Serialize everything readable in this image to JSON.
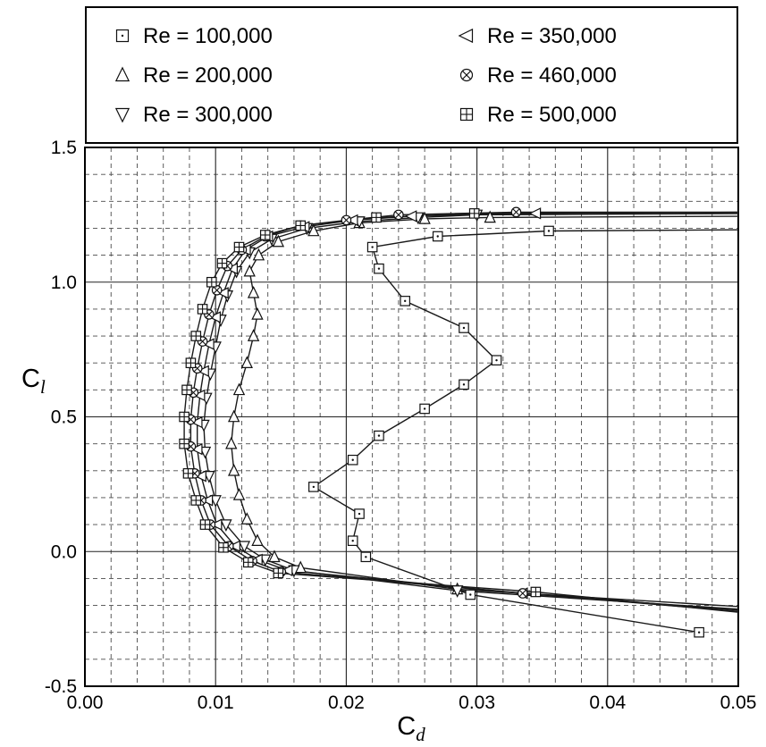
{
  "chart_data": {
    "type": "scatter",
    "title": "",
    "xlabel_main": "C",
    "xlabel_sub": "d",
    "ylabel_main": "C",
    "ylabel_sub": "l",
    "xlim": [
      0,
      0.05
    ],
    "ylim": [
      -0.5,
      1.5
    ],
    "x_major_ticks": [
      0,
      0.01,
      0.02,
      0.03,
      0.04,
      0.05
    ],
    "x_tick_labels": [
      "0.00",
      "0.01",
      "0.02",
      "0.03",
      "0.04",
      "0.05"
    ],
    "y_major_ticks": [
      -0.5,
      0,
      0.5,
      1,
      1.5
    ],
    "y_tick_labels": [
      "-0.5",
      "0.0",
      "0.5",
      "1.0",
      "1.5"
    ],
    "x_minor_step": 0.002,
    "y_minor_step": 0.1,
    "grid": {
      "major": "solid",
      "minor": "dashed"
    },
    "line_color": "#1a1a1a",
    "background": "#ffffff",
    "legend": {
      "position": "top",
      "columns": 2,
      "border": true
    },
    "series": [
      {
        "name": "Re = 100,000",
        "marker": "square-dot",
        "points": [
          [
            0.047,
            -0.3
          ],
          [
            0.0295,
            -0.16
          ],
          [
            0.0215,
            -0.02
          ],
          [
            0.0205,
            0.04
          ],
          [
            0.021,
            0.14
          ],
          [
            0.0175,
            0.24
          ],
          [
            0.0205,
            0.34
          ],
          [
            0.0225,
            0.43
          ],
          [
            0.026,
            0.53
          ],
          [
            0.029,
            0.62
          ],
          [
            0.0315,
            0.71
          ],
          [
            0.029,
            0.83
          ],
          [
            0.0245,
            0.93
          ],
          [
            0.0225,
            1.05
          ],
          [
            0.022,
            1.13
          ],
          [
            0.027,
            1.17
          ],
          [
            0.0355,
            1.19
          ]
        ],
        "post": [
          [
            0.052,
            1.195
          ]
        ]
      },
      {
        "name": "Re = 200,000",
        "marker": "triangle-up",
        "pre": [
          [
            0.052,
            -0.21
          ]
        ],
        "points": [
          [
            0.0285,
            -0.14
          ],
          [
            0.0165,
            -0.06
          ],
          [
            0.0145,
            -0.02
          ],
          [
            0.0132,
            0.04
          ],
          [
            0.0124,
            0.12
          ],
          [
            0.0118,
            0.21
          ],
          [
            0.0114,
            0.3
          ],
          [
            0.0112,
            0.4
          ],
          [
            0.0114,
            0.5
          ],
          [
            0.0118,
            0.6
          ],
          [
            0.0124,
            0.7
          ],
          [
            0.0129,
            0.8
          ],
          [
            0.0132,
            0.88
          ],
          [
            0.0129,
            0.96
          ],
          [
            0.0126,
            1.04
          ],
          [
            0.0133,
            1.1
          ],
          [
            0.0148,
            1.15
          ],
          [
            0.0175,
            1.19
          ],
          [
            0.021,
            1.22
          ],
          [
            0.026,
            1.235
          ],
          [
            0.031,
            1.24
          ]
        ],
        "post": [
          [
            0.052,
            1.245
          ]
        ]
      },
      {
        "name": "Re = 300,000",
        "marker": "triangle-down",
        "pre": [
          [
            0.052,
            -0.22
          ]
        ],
        "points": [
          [
            0.0285,
            -0.145
          ],
          [
            0.016,
            -0.07
          ],
          [
            0.0138,
            -0.03
          ],
          [
            0.0122,
            0.02
          ],
          [
            0.0108,
            0.1
          ],
          [
            0.01,
            0.19
          ],
          [
            0.0095,
            0.28
          ],
          [
            0.0092,
            0.37
          ],
          [
            0.0091,
            0.47
          ],
          [
            0.0093,
            0.57
          ],
          [
            0.0096,
            0.66
          ],
          [
            0.01,
            0.76
          ],
          [
            0.0104,
            0.86
          ],
          [
            0.0109,
            0.95
          ],
          [
            0.0116,
            1.04
          ],
          [
            0.0126,
            1.11
          ],
          [
            0.0143,
            1.16
          ],
          [
            0.017,
            1.2
          ],
          [
            0.021,
            1.225
          ],
          [
            0.0255,
            1.24
          ],
          [
            0.03,
            1.25
          ]
        ],
        "post": [
          [
            0.052,
            1.255
          ]
        ]
      },
      {
        "name": "Re = 350,000",
        "marker": "triangle-left",
        "pre": [
          [
            0.052,
            -0.225
          ]
        ],
        "points": [
          [
            0.0335,
            -0.155
          ],
          [
            0.0155,
            -0.07
          ],
          [
            0.0132,
            -0.03
          ],
          [
            0.0115,
            0.02
          ],
          [
            0.0101,
            0.1
          ],
          [
            0.0094,
            0.19
          ],
          [
            0.0089,
            0.28
          ],
          [
            0.0086,
            0.38
          ],
          [
            0.0086,
            0.48
          ],
          [
            0.0088,
            0.58
          ],
          [
            0.0091,
            0.67
          ],
          [
            0.0095,
            0.77
          ],
          [
            0.01,
            0.87
          ],
          [
            0.0106,
            0.96
          ],
          [
            0.0113,
            1.05
          ],
          [
            0.0123,
            1.12
          ],
          [
            0.014,
            1.17
          ],
          [
            0.0168,
            1.205
          ],
          [
            0.0205,
            1.23
          ],
          [
            0.025,
            1.245
          ],
          [
            0.0345,
            1.255
          ]
        ],
        "post": [
          [
            0.052,
            1.26
          ]
        ]
      },
      {
        "name": "Re = 460,000",
        "marker": "circle-x",
        "pre": [
          [
            0.052,
            -0.23
          ]
        ],
        "points": [
          [
            0.0335,
            -0.155
          ],
          [
            0.015,
            -0.075
          ],
          [
            0.0128,
            -0.035
          ],
          [
            0.011,
            0.02
          ],
          [
            0.0096,
            0.1
          ],
          [
            0.0089,
            0.19
          ],
          [
            0.0084,
            0.29
          ],
          [
            0.0081,
            0.39
          ],
          [
            0.0081,
            0.49
          ],
          [
            0.0083,
            0.59
          ],
          [
            0.0086,
            0.68
          ],
          [
            0.009,
            0.78
          ],
          [
            0.0095,
            0.88
          ],
          [
            0.0101,
            0.97
          ],
          [
            0.0109,
            1.06
          ],
          [
            0.012,
            1.12
          ],
          [
            0.0138,
            1.17
          ],
          [
            0.0165,
            1.21
          ],
          [
            0.02,
            1.23
          ],
          [
            0.024,
            1.25
          ],
          [
            0.033,
            1.26
          ]
        ],
        "post": [
          [
            0.052,
            1.26
          ]
        ]
      },
      {
        "name": "Re = 500,000",
        "marker": "square-plus",
        "pre": [
          [
            0.052,
            -0.235
          ]
        ],
        "points": [
          [
            0.0345,
            -0.15
          ],
          [
            0.0148,
            -0.08
          ],
          [
            0.0125,
            -0.04
          ],
          [
            0.0106,
            0.015
          ],
          [
            0.0092,
            0.1
          ],
          [
            0.0085,
            0.19
          ],
          [
            0.0079,
            0.29
          ],
          [
            0.0076,
            0.4
          ],
          [
            0.0076,
            0.5
          ],
          [
            0.0078,
            0.6
          ],
          [
            0.0081,
            0.7
          ],
          [
            0.0085,
            0.8
          ],
          [
            0.009,
            0.9
          ],
          [
            0.0097,
            1.0
          ],
          [
            0.0105,
            1.07
          ],
          [
            0.0118,
            1.13
          ],
          [
            0.0138,
            1.175
          ],
          [
            0.0165,
            1.21
          ],
          [
            0.0223,
            1.24
          ],
          [
            0.0298,
            1.255
          ]
        ],
        "post": [
          [
            0.052,
            1.26
          ]
        ]
      }
    ]
  }
}
